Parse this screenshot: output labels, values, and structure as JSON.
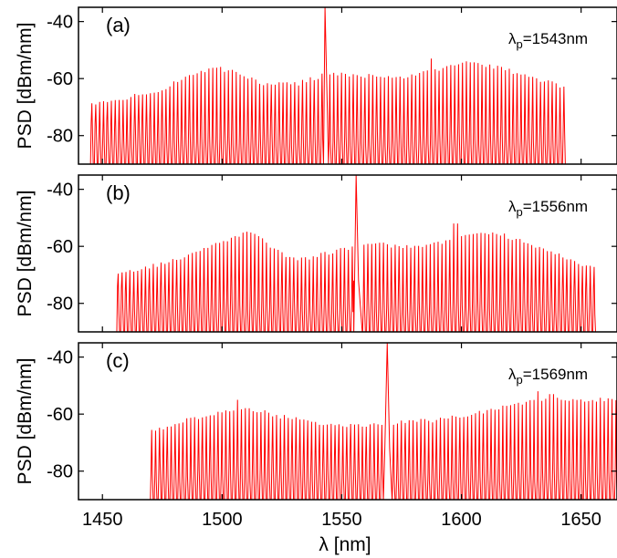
{
  "chart_data": [
    {
      "type": "line",
      "panel_label": "(a)",
      "pump_lambda_nm": 1543,
      "pump_label": {
        "symbol": "λ",
        "sub": "p",
        "value": "=1543nm"
      },
      "ylabel": "PSD [dBm/nm]",
      "xlim": [
        1440,
        1665
      ],
      "ylim": [
        -90,
        -35
      ],
      "yticks": [
        -40,
        -60,
        -80
      ],
      "comb": {
        "start_nm": 1445,
        "end_nm": 1643,
        "floor_db": -90,
        "envelope": {
          "x": [
            1445,
            1470,
            1490,
            1497,
            1505,
            1518,
            1530,
            1545,
            1560,
            1575,
            1588,
            1600,
            1615,
            1630,
            1643
          ],
          "y": [
            -69,
            -65,
            -58,
            -56,
            -58,
            -62,
            -62,
            -58,
            -59,
            -60,
            -57,
            -54,
            -56,
            -60,
            -63
          ]
        },
        "extra_peaks": [
          [
            1587,
            -53
          ]
        ]
      },
      "series": [
        {
          "name": "",
          "color": "#ff0000"
        }
      ]
    },
    {
      "type": "line",
      "panel_label": "(b)",
      "pump_lambda_nm": 1556,
      "pump_label": {
        "symbol": "λ",
        "sub": "p",
        "value": "=1556nm"
      },
      "ylabel": "PSD [dBm/nm]",
      "xlim": [
        1440,
        1665
      ],
      "ylim": [
        -90,
        -35
      ],
      "yticks": [
        -40,
        -60,
        -80
      ],
      "comb": {
        "start_nm": 1456,
        "end_nm": 1655,
        "floor_db": -90,
        "envelope": {
          "x": [
            1456,
            1475,
            1490,
            1500,
            1512,
            1520,
            1530,
            1545,
            1560,
            1575,
            1590,
            1600,
            1613,
            1630,
            1655
          ],
          "y": [
            -70,
            -66,
            -62,
            -58,
            -55,
            -60,
            -65,
            -62,
            -59,
            -60,
            -59,
            -56,
            -55,
            -60,
            -68
          ]
        },
        "extra_peaks": [
          [
            1597,
            -52
          ]
        ]
      },
      "series": [
        {
          "name": "",
          "color": "#ff0000"
        }
      ]
    },
    {
      "type": "line",
      "panel_label": "(c)",
      "pump_lambda_nm": 1569,
      "pump_label": {
        "symbol": "λ",
        "sub": "p",
        "value": "=1569nm"
      },
      "ylabel": "PSD [dBm/nm]",
      "xlabel": "λ [nm]",
      "xlim": [
        1440,
        1665
      ],
      "ylim": [
        -90,
        -35
      ],
      "yticks": [
        -40,
        -60,
        -80
      ],
      "xticks": [
        1450,
        1500,
        1550,
        1600,
        1650
      ],
      "comb": {
        "start_nm": 1470,
        "end_nm": 1665,
        "floor_db": -90,
        "envelope": {
          "x": [
            1470,
            1485,
            1500,
            1510,
            1525,
            1540,
            1555,
            1570,
            1590,
            1610,
            1625,
            1640,
            1665
          ],
          "y": [
            -66,
            -62,
            -59,
            -58,
            -61,
            -63,
            -64,
            -63,
            -62,
            -59,
            -56,
            -55,
            -55
          ]
        },
        "extra_peaks": [
          [
            1506,
            -55
          ],
          [
            1632,
            -52
          ],
          [
            1637,
            -53
          ]
        ]
      },
      "series": [
        {
          "name": "",
          "color": "#ff0000"
        }
      ]
    }
  ]
}
